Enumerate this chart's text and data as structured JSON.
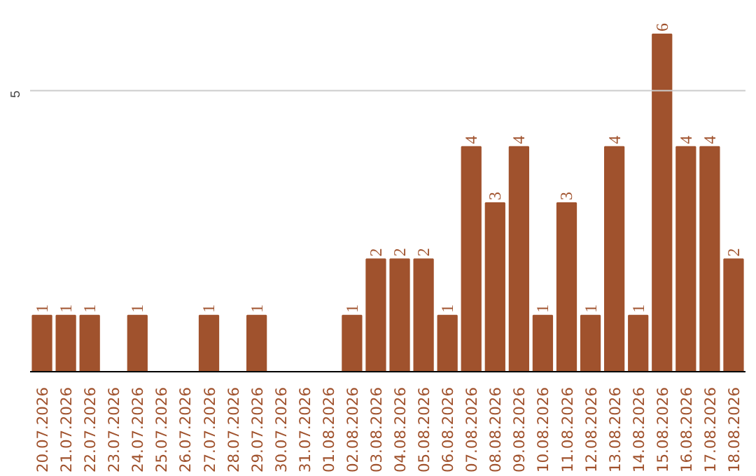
{
  "chart_data": {
    "type": "bar",
    "categories": [
      "20.07.2026",
      "21.07.2026",
      "22.07.2026",
      "23.07.2026",
      "24.07.2026",
      "25.07.2026",
      "26.07.2026",
      "27.07.2026",
      "28.07.2026",
      "29.07.2026",
      "30.07.2026",
      "31.07.2026",
      "01.08.2026",
      "02.08.2026",
      "03.08.2026",
      "04.08.2026",
      "05.08.2026",
      "06.08.2026",
      "07.08.2026",
      "08.08.2026",
      "09.08.2026",
      "10.08.2026",
      "11.08.2026",
      "12.08.2026",
      "13.08.2026",
      "14.08.2026",
      "15.08.2026",
      "16.08.2026",
      "17.08.2026",
      "18.08.2026"
    ],
    "values": [
      1,
      1,
      1,
      0,
      1,
      0,
      0,
      1,
      0,
      1,
      0,
      0,
      0,
      1,
      2,
      2,
      2,
      1,
      4,
      3,
      4,
      1,
      3,
      1,
      4,
      1,
      6,
      4,
      4,
      2
    ],
    "value_labels": [
      "1",
      "1",
      "1",
      null,
      "1",
      null,
      null,
      "1",
      null,
      "1",
      null,
      null,
      null,
      "1",
      "2",
      "2",
      "2",
      "1",
      "4",
      "3",
      "4",
      "1",
      "3",
      "1",
      "4",
      "1",
      "6",
      "4",
      "4",
      "2"
    ],
    "color": "#a0522d",
    "ref_lines": [
      {
        "axis": "y",
        "value": 5,
        "label": "5",
        "color": "#cccccc"
      }
    ]
  }
}
